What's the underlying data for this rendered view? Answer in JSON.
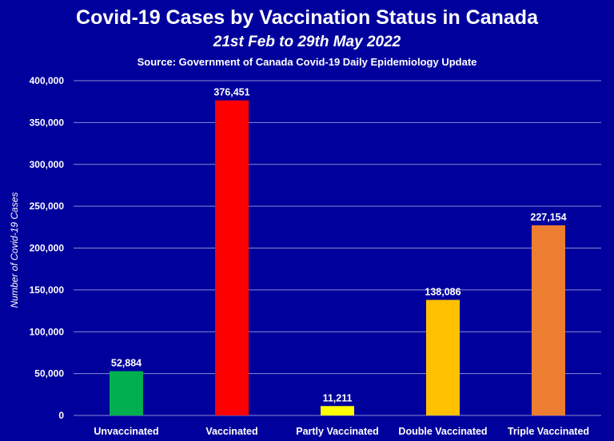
{
  "chart_data": {
    "type": "bar",
    "title": "Covid-19 Cases by Vaccination Status in Canada",
    "subtitle": "21st Feb to 29th May 2022",
    "source": "Source: Government of Canada Covid-19 Daily Epidemiology Update",
    "ylabel": "Number of Covid-19 Cases",
    "xlabel": "",
    "categories": [
      "Unvaccinated",
      "Vaccinated",
      "Partly Vaccinated",
      "Double Vaccinated",
      "Triple Vaccinated"
    ],
    "values": [
      52884,
      376451,
      11211,
      138086,
      227154
    ],
    "value_labels": [
      "52,884",
      "376,451",
      "11,211",
      "138,086",
      "227,154"
    ],
    "bar_colors": [
      "#00b050",
      "#ff0000",
      "#ffff00",
      "#ffc000",
      "#ed7d31"
    ],
    "ylim": [
      0,
      400000
    ],
    "yticks": [
      0,
      50000,
      100000,
      150000,
      200000,
      250000,
      300000,
      350000,
      400000
    ],
    "ytick_labels": [
      "0",
      "50,000",
      "100,000",
      "150,000",
      "200,000",
      "250,000",
      "300,000",
      "350,000",
      "400,000"
    ],
    "grid": true,
    "legend": "none"
  },
  "colors": {
    "background": "#00009c",
    "text": "#ffffff",
    "gridline": "#8a8ad0"
  }
}
